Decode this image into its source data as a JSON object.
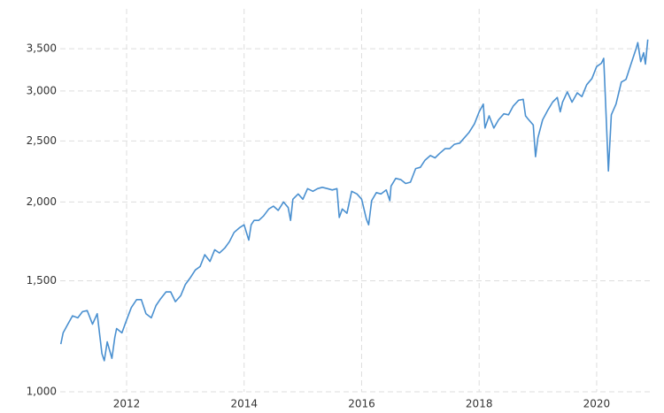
{
  "chart_data": {
    "type": "line",
    "log_scale": true,
    "grid": true,
    "color": "#4a90d0",
    "x": [
      2010.88,
      2010.92,
      2011.0,
      2011.08,
      2011.17,
      2011.25,
      2011.33,
      2011.42,
      2011.5,
      2011.58,
      2011.62,
      2011.67,
      2011.75,
      2011.8,
      2011.83,
      2011.92,
      2012.0,
      2012.08,
      2012.17,
      2012.25,
      2012.33,
      2012.42,
      2012.5,
      2012.58,
      2012.67,
      2012.75,
      2012.83,
      2012.92,
      2013.0,
      2013.08,
      2013.17,
      2013.25,
      2013.33,
      2013.42,
      2013.5,
      2013.58,
      2013.67,
      2013.75,
      2013.83,
      2013.92,
      2014.0,
      2014.08,
      2014.12,
      2014.17,
      2014.25,
      2014.33,
      2014.42,
      2014.5,
      2014.58,
      2014.67,
      2014.75,
      2014.79,
      2014.83,
      2014.92,
      2015.0,
      2015.08,
      2015.17,
      2015.25,
      2015.33,
      2015.42,
      2015.5,
      2015.58,
      2015.62,
      2015.67,
      2015.75,
      2015.83,
      2015.92,
      2016.0,
      2016.08,
      2016.12,
      2016.17,
      2016.25,
      2016.33,
      2016.42,
      2016.48,
      2016.5,
      2016.58,
      2016.67,
      2016.75,
      2016.83,
      2016.92,
      2017.0,
      2017.08,
      2017.17,
      2017.25,
      2017.33,
      2017.42,
      2017.5,
      2017.58,
      2017.67,
      2017.75,
      2017.83,
      2017.92,
      2018.0,
      2018.07,
      2018.1,
      2018.17,
      2018.25,
      2018.33,
      2018.42,
      2018.5,
      2018.58,
      2018.67,
      2018.75,
      2018.79,
      2018.83,
      2018.92,
      2018.96,
      2019.0,
      2019.08,
      2019.17,
      2019.25,
      2019.33,
      2019.38,
      2019.42,
      2019.5,
      2019.58,
      2019.67,
      2019.75,
      2019.83,
      2019.92,
      2020.0,
      2020.08,
      2020.12,
      2020.15,
      2020.2,
      2020.25,
      2020.33,
      2020.42,
      2020.5,
      2020.58,
      2020.67,
      2020.7,
      2020.75,
      2020.8,
      2020.83,
      2020.87
    ],
    "values": [
      1190,
      1240,
      1280,
      1320,
      1310,
      1340,
      1345,
      1280,
      1330,
      1150,
      1120,
      1200,
      1130,
      1220,
      1260,
      1240,
      1300,
      1360,
      1400,
      1400,
      1330,
      1310,
      1370,
      1405,
      1440,
      1440,
      1390,
      1420,
      1480,
      1515,
      1560,
      1580,
      1650,
      1610,
      1680,
      1660,
      1690,
      1730,
      1790,
      1820,
      1840,
      1740,
      1840,
      1870,
      1870,
      1900,
      1950,
      1970,
      1940,
      2000,
      1960,
      1870,
      2020,
      2060,
      2020,
      2100,
      2080,
      2100,
      2110,
      2100,
      2090,
      2100,
      1890,
      1950,
      1920,
      2080,
      2060,
      2020,
      1880,
      1840,
      2010,
      2070,
      2060,
      2090,
      2010,
      2120,
      2180,
      2170,
      2140,
      2150,
      2260,
      2270,
      2330,
      2370,
      2350,
      2390,
      2430,
      2430,
      2470,
      2480,
      2530,
      2580,
      2660,
      2780,
      2860,
      2620,
      2740,
      2620,
      2700,
      2760,
      2750,
      2840,
      2900,
      2910,
      2740,
      2710,
      2650,
      2360,
      2530,
      2700,
      2800,
      2880,
      2930,
      2780,
      2880,
      2990,
      2880,
      2980,
      2940,
      3070,
      3140,
      3280,
      3320,
      3380,
      2900,
      2240,
      2750,
      2860,
      3100,
      3130,
      3300,
      3500,
      3580,
      3340,
      3450,
      3310,
      3620
    ],
    "xlim": [
      2010.87,
      2020.92
    ],
    "xticks": [
      2012,
      2014,
      2016,
      2018,
      2020
    ],
    "ylim": [
      1000,
      4050
    ],
    "yticks": [
      {
        "value": 1000,
        "label": "1,000"
      },
      {
        "value": 1500,
        "label": "1,500"
      },
      {
        "value": 2000,
        "label": "2,000"
      },
      {
        "value": 2500,
        "label": "2,500"
      },
      {
        "value": 3000,
        "label": "3,000"
      },
      {
        "value": 3500,
        "label": "3,500"
      }
    ]
  }
}
